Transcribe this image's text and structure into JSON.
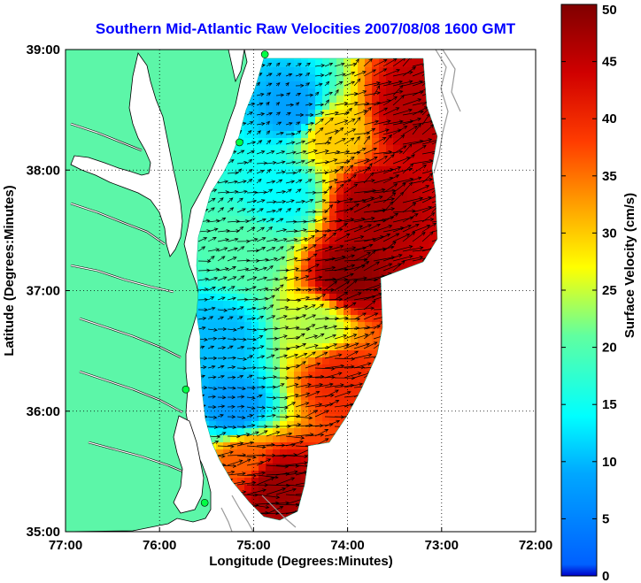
{
  "chart_data": {
    "type": "heatmap",
    "title": "Southern Mid-Atlantic Raw Velocities 2007/08/08 1600 GMT",
    "xlabel": "Longitude (Degrees:Minutes)",
    "ylabel": "Latitude (Degrees:Minutes)",
    "x_ticks": [
      "77:00",
      "76:00",
      "75:00",
      "74:00",
      "73:00",
      "72:00"
    ],
    "y_ticks": [
      "39:00",
      "38:00",
      "37:00",
      "36:00",
      "35:00"
    ],
    "xlim": [
      -77,
      -72
    ],
    "ylim": [
      35,
      39
    ],
    "grid": true,
    "colorbar": {
      "label": "Surface Velocity (cm/s)",
      "ticks": [
        "0",
        "5",
        "10",
        "15",
        "20",
        "25",
        "30",
        "35",
        "40",
        "45",
        "50"
      ],
      "range": [
        0,
        50
      ],
      "colormap": "jet"
    },
    "colors": {
      "land": "#5cf6a8",
      "coastline": "#000000",
      "bathymetry": "#9a9a9a",
      "stations": "#00ff44",
      "title": "#0000ff"
    },
    "stations": [
      {
        "lon": -74.88,
        "lat": 38.96
      },
      {
        "lon": -75.15,
        "lat": 38.23
      },
      {
        "lon": -75.72,
        "lat": 36.18
      },
      {
        "lon": -75.52,
        "lat": 35.24
      }
    ],
    "velocity_regions": [
      {
        "lon": -74.55,
        "lat": 38.5,
        "speed": 8
      },
      {
        "lon": -74.7,
        "lat": 37.8,
        "speed": 14
      },
      {
        "lon": -75.05,
        "lat": 37.3,
        "speed": 20
      },
      {
        "lon": -75.35,
        "lat": 36.6,
        "speed": 10
      },
      {
        "lon": -75.2,
        "lat": 36.0,
        "speed": 7
      },
      {
        "lon": -74.2,
        "lat": 38.3,
        "speed": 30
      },
      {
        "lon": -73.75,
        "lat": 37.7,
        "speed": 47
      },
      {
        "lon": -73.3,
        "lat": 38.5,
        "speed": 46
      },
      {
        "lon": -74.0,
        "lat": 37.1,
        "speed": 49
      },
      {
        "lon": -74.3,
        "lat": 36.7,
        "speed": 24
      },
      {
        "lon": -74.1,
        "lat": 36.3,
        "speed": 40
      },
      {
        "lon": -74.8,
        "lat": 35.4,
        "speed": 48
      },
      {
        "lon": -75.1,
        "lat": 35.6,
        "speed": 36
      }
    ]
  }
}
